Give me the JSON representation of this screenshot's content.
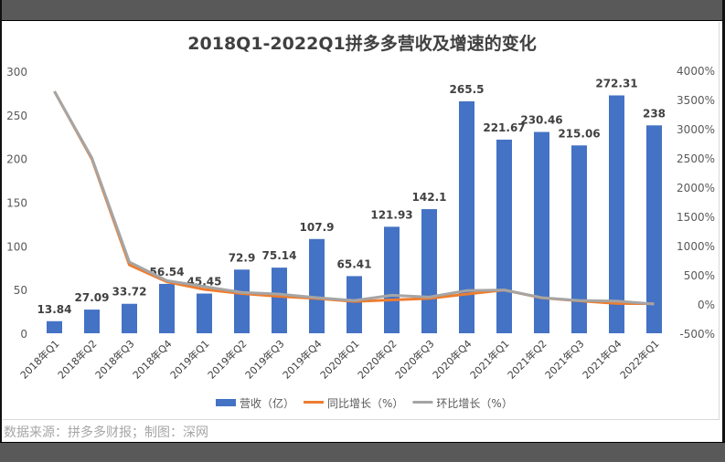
{
  "chart_data": {
    "type": "bar+line",
    "title": "2018Q1-2022Q1拼多多营收及增速的变化",
    "categories": [
      "2018年Q1",
      "2018年Q2",
      "2018年Q3",
      "2018年Q4",
      "2019年Q1",
      "2019年Q2",
      "2019年Q3",
      "2019年Q4",
      "2020年Q1",
      "2020年Q2",
      "2020年Q3",
      "2020年Q4",
      "2021年Q1",
      "2021年Q2",
      "2021年Q3",
      "2021年Q4",
      "2022年Q1"
    ],
    "value_labels": [
      "13.84",
      "27.09",
      "33.72",
      "56.54",
      "45.45",
      "72.9",
      "75.14",
      "107.9",
      "65.41",
      "121.93",
      "142.1",
      "265.5",
      "221.67",
      "230.46",
      "215.06",
      "272.31",
      "238"
    ],
    "series": [
      {
        "name": "营收（亿）",
        "type": "bar",
        "axis": "left",
        "color": "#4472c4",
        "values": [
          13.84,
          27.09,
          33.72,
          56.54,
          45.45,
          72.9,
          75.14,
          107.9,
          65.41,
          121.93,
          142.1,
          265.5,
          221.67,
          230.46,
          215.06,
          272.31,
          238
        ]
      },
      {
        "name": "同比增长（%）",
        "type": "line",
        "axis": "right",
        "color": "#ed7d31",
        "values": [
          3640,
          2480,
          670,
          380,
          250,
          180,
          130,
          95,
          44,
          70,
          95,
          170,
          240,
          105,
          55,
          10,
          5
        ]
      },
      {
        "name": "环比增长（%）",
        "type": "line",
        "axis": "right",
        "color": "#a5a5a5",
        "values": [
          3640,
          2500,
          720,
          400,
          300,
          200,
          170,
          110,
          60,
          150,
          120,
          230,
          240,
          110,
          60,
          50,
          0
        ]
      }
    ],
    "left_axis": {
      "ylim": [
        0,
        300
      ],
      "ticks": [
        "0",
        "50",
        "100",
        "150",
        "200",
        "250",
        "300"
      ]
    },
    "right_axis": {
      "ylim": [
        -500,
        4000
      ],
      "ticks": [
        "-500%",
        "0%",
        "500%",
        "1000%",
        "1500%",
        "2000%",
        "2500%",
        "3000%",
        "3500%",
        "4000%"
      ]
    },
    "legend_placement": "bottom"
  },
  "footer": "数据来源：拼多多财报；制图：深网"
}
